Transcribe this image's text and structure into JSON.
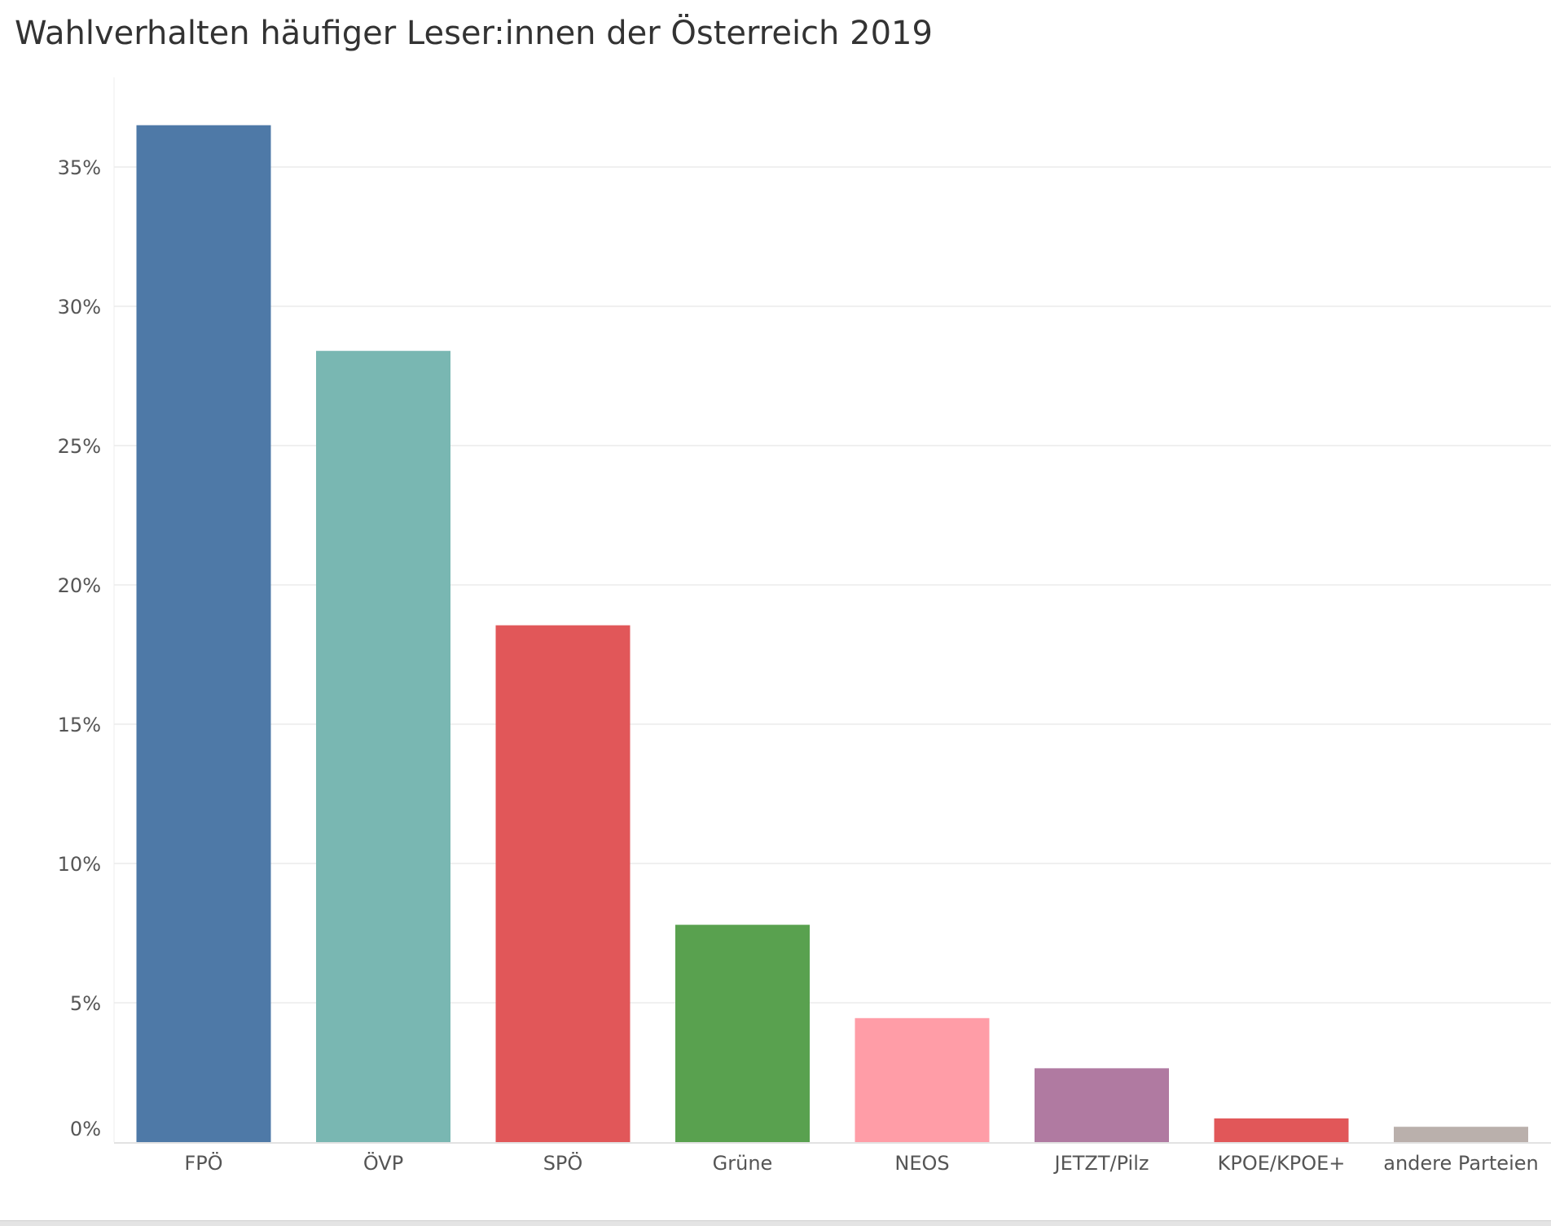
{
  "chart_data": {
    "type": "bar",
    "title": "Wahlverhalten häufiger Leser:innen der Österreich 2019",
    "xlabel": "",
    "ylabel": "",
    "categories": [
      "FPÖ",
      "ÖVP",
      "SPÖ",
      "Grüne",
      "NEOS",
      "JETZT/Pilz",
      "KPOE/KPOE+",
      "andere Parteien"
    ],
    "values": [
      36.5,
      28.4,
      18.55,
      7.8,
      4.45,
      2.65,
      0.85,
      0.55
    ],
    "colors": [
      "#4e79a7",
      "#79b7b2",
      "#e15759",
      "#59a14f",
      "#ff9da7",
      "#b07aa1",
      "#e15759",
      "#bab0ac"
    ],
    "ylim": [
      0,
      37.5
    ],
    "yticks": [
      0,
      5,
      10,
      15,
      20,
      25,
      30,
      35
    ],
    "ytick_labels": [
      "0%",
      "5%",
      "10%",
      "15%",
      "20%",
      "25%",
      "30%",
      "35%"
    ],
    "grid": true,
    "legend": "none"
  }
}
